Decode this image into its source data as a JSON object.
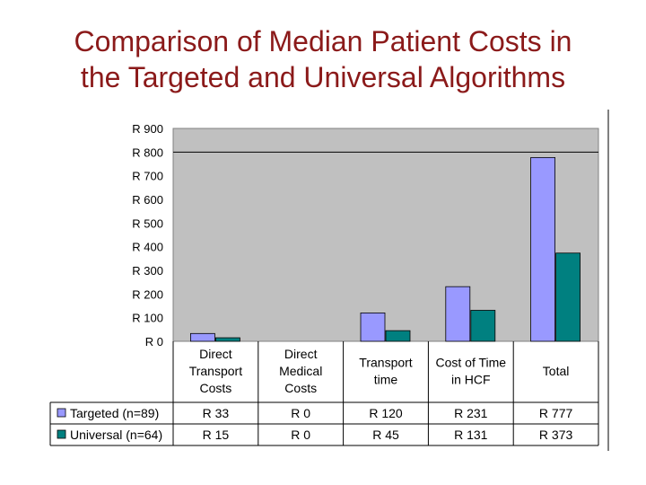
{
  "title_line1": "Comparison of Median Patient Costs in",
  "title_line2": "the Targeted and Universal Algorithms",
  "chart_data": {
    "type": "bar",
    "title": "Comparison of Median Patient Costs in the Targeted and Universal Algorithms",
    "categories": [
      [
        "Direct",
        "Transport",
        "Costs"
      ],
      [
        "Direct",
        "Medical",
        "Costs"
      ],
      [
        "Transport",
        "time"
      ],
      [
        "Cost of Time",
        "in HCF"
      ],
      [
        "Total"
      ]
    ],
    "ylim": [
      0,
      900
    ],
    "yticks": [
      "R 0",
      "R 100",
      "R 200",
      "R 300",
      "R 400",
      "R 500",
      "R 600",
      "R 700",
      "R 800",
      "R 900"
    ],
    "series": [
      {
        "name": "Targeted (n=89)",
        "color": "#9999ff",
        "values": [
          33,
          0,
          120,
          231,
          777
        ],
        "labels": [
          "R 33",
          "R 0",
          "R 120",
          "R 231",
          "R 777"
        ]
      },
      {
        "name": "Universal (n=64)",
        "color": "#008080",
        "values": [
          15,
          0,
          45,
          131,
          373
        ],
        "labels": [
          "R 15",
          "R 0",
          "R 45",
          "R 131",
          "R 373"
        ]
      }
    ],
    "plot_background": "#c0c0c0"
  }
}
